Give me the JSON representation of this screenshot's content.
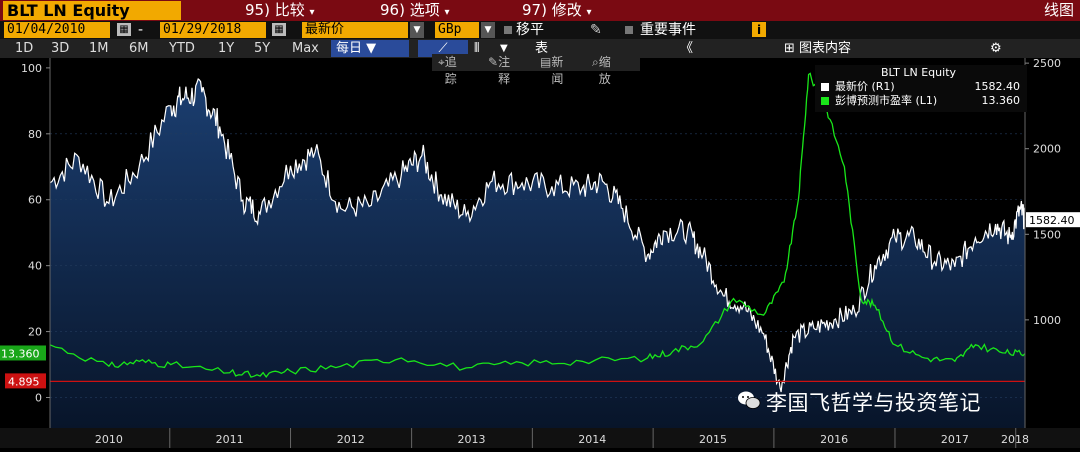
{
  "toolbar": {
    "ticker": "BLT LN Equity",
    "menu": [
      {
        "num": "95)",
        "label": "比较"
      },
      {
        "num": "96)",
        "label": "选项"
      },
      {
        "num": "97)",
        "label": "修改"
      }
    ],
    "chart_type_label": "线图"
  },
  "range": {
    "start_date": "01/04/2010",
    "separator": "-",
    "end_date": "01/29/2018",
    "field": "最新价",
    "currency": "GBp",
    "moving_avg": "移平",
    "events": "重要事件"
  },
  "periods": [
    "1D",
    "3D",
    "1M",
    "6M",
    "YTD",
    "1Y",
    "5Y",
    "Max"
  ],
  "frequency": "每日",
  "table_label": "表",
  "chart_content_label": "图表内容",
  "tools": [
    "追踪",
    "注释",
    "新闻",
    "缩放"
  ],
  "legend": {
    "title": "BLT LN Equity",
    "rows": [
      {
        "label": "最新价 (R1)",
        "value": "1582.40",
        "color": "#ffffff"
      },
      {
        "label": "彭博预测市盈率 (L1)",
        "value": "13.360",
        "color": "#19e619"
      }
    ]
  },
  "watermark": "李国飞哲学与投资笔记",
  "colors": {
    "price_line": "#ffffff",
    "price_fill": "#0f2c55",
    "pe_line": "#19e619",
    "ref_line": "#cc1111",
    "bar_red": "#7a0a12",
    "orange": "#f2a900"
  },
  "chart_data": {
    "type": "line",
    "title": "BLT LN Equity",
    "x_axis": {
      "ticks": [
        "2010",
        "2011",
        "2012",
        "2013",
        "2014",
        "2015",
        "2016",
        "2017",
        "2018"
      ],
      "range": [
        "2010-01-04",
        "2018-01-29"
      ]
    },
    "y_left": {
      "ticks": [
        "0",
        "20",
        "40",
        "60",
        "80",
        "100"
      ],
      "ylim": [
        -5,
        103
      ]
    },
    "y_right": {
      "ticks": [
        "1000",
        "1500",
        "2000",
        "2500"
      ],
      "ylim": [
        450,
        2530
      ]
    },
    "series": [
      {
        "name": "最新价 (R1)",
        "axis": "right",
        "last_label": "1582.40",
        "points": [
          [
            "2010-01-04",
            1800
          ],
          [
            "2010-04-01",
            1950
          ],
          [
            "2010-07-01",
            1680
          ],
          [
            "2010-10-01",
            1900
          ],
          [
            "2011-01-04",
            2250
          ],
          [
            "2011-02-15",
            2300
          ],
          [
            "2011-04-08",
            2330
          ],
          [
            "2011-06-01",
            2130
          ],
          [
            "2011-08-10",
            1700
          ],
          [
            "2011-10-01",
            1620
          ],
          [
            "2012-01-01",
            1900
          ],
          [
            "2012-03-15",
            1980
          ],
          [
            "2012-06-01",
            1650
          ],
          [
            "2012-09-01",
            1670
          ],
          [
            "2012-12-01",
            1850
          ],
          [
            "2013-02-01",
            1960
          ],
          [
            "2013-04-01",
            1730
          ],
          [
            "2013-06-15",
            1610
          ],
          [
            "2013-09-01",
            1810
          ],
          [
            "2013-12-01",
            1800
          ],
          [
            "2014-03-01",
            1780
          ],
          [
            "2014-06-01",
            1770
          ],
          [
            "2014-08-01",
            1810
          ],
          [
            "2014-10-01",
            1650
          ],
          [
            "2014-12-15",
            1380
          ],
          [
            "2015-02-01",
            1520
          ],
          [
            "2015-04-15",
            1520
          ],
          [
            "2015-06-01",
            1380
          ],
          [
            "2015-08-01",
            1140
          ],
          [
            "2015-10-01",
            1080
          ],
          [
            "2015-12-01",
            920
          ],
          [
            "2016-01-20",
            600
          ],
          [
            "2016-03-01",
            900
          ],
          [
            "2016-05-01",
            950
          ],
          [
            "2016-07-01",
            1000
          ],
          [
            "2016-09-01",
            1050
          ],
          [
            "2016-11-01",
            1320
          ],
          [
            "2017-01-01",
            1480
          ],
          [
            "2017-03-01",
            1480
          ],
          [
            "2017-05-01",
            1340
          ],
          [
            "2017-07-01",
            1310
          ],
          [
            "2017-09-01",
            1480
          ],
          [
            "2017-11-01",
            1560
          ],
          [
            "2017-12-15",
            1480
          ],
          [
            "2018-01-15",
            1650
          ],
          [
            "2018-01-29",
            1582.4
          ]
        ]
      },
      {
        "name": "彭博预测市盈率 (L1)",
        "axis": "left",
        "last_label": "13.360",
        "points": [
          [
            "2010-01-04",
            16
          ],
          [
            "2010-07-01",
            9.5
          ],
          [
            "2010-10-01",
            11
          ],
          [
            "2011-01-04",
            10
          ],
          [
            "2011-07-01",
            7.5
          ],
          [
            "2011-10-01",
            6.5
          ],
          [
            "2012-01-01",
            8
          ],
          [
            "2012-06-01",
            9.5
          ],
          [
            "2012-12-01",
            12
          ],
          [
            "2013-06-15",
            9
          ],
          [
            "2013-12-01",
            10.5
          ],
          [
            "2014-06-01",
            11
          ],
          [
            "2014-12-15",
            12
          ],
          [
            "2015-03-01",
            14
          ],
          [
            "2015-06-01",
            17
          ],
          [
            "2015-09-01",
            30
          ],
          [
            "2015-12-01",
            25
          ],
          [
            "2016-02-01",
            35
          ],
          [
            "2016-03-15",
            60
          ],
          [
            "2016-04-15",
            98
          ],
          [
            "2016-06-01",
            90
          ],
          [
            "2016-08-01",
            70
          ],
          [
            "2016-09-20",
            30
          ],
          [
            "2016-11-01",
            28
          ],
          [
            "2017-01-01",
            16
          ],
          [
            "2017-04-01",
            12
          ],
          [
            "2017-07-01",
            11
          ],
          [
            "2017-09-01",
            16
          ],
          [
            "2017-12-01",
            13.5
          ],
          [
            "2018-01-29",
            13.36
          ]
        ]
      }
    ],
    "reference_lines": [
      {
        "axis": "left",
        "value": 4.895,
        "label": "4.895"
      }
    ],
    "grid": false,
    "legend_position": "top-right"
  }
}
